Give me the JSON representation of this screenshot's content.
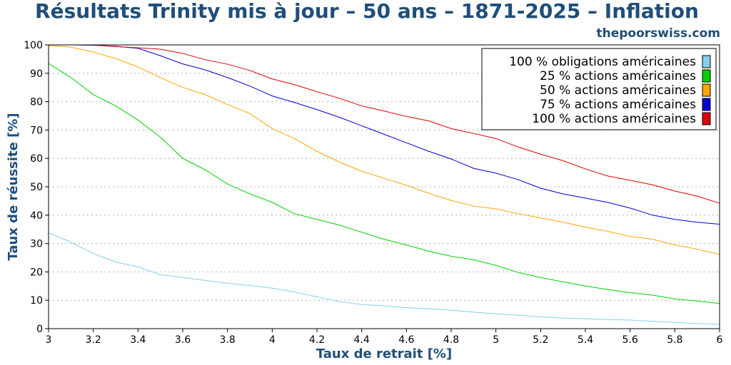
{
  "header": {
    "title": "Résultats Trinity mis à jour – 50 ans – 1871-2025 – Inflation",
    "brand": "thepoorswiss.com"
  },
  "chart_data": {
    "type": "line",
    "title": "Résultats Trinity mis à jour – 50 ans – 1871-2025 – Inflation",
    "xlabel": "Taux de retrait [%]",
    "ylabel": "Taux de réussite [%]",
    "xlim": [
      3,
      6
    ],
    "ylim": [
      0,
      100
    ],
    "xticks": [
      3,
      3.2,
      3.4,
      3.6,
      3.8,
      4,
      4.2,
      4.4,
      4.6,
      4.8,
      5,
      5.2,
      5.4,
      5.6,
      5.8,
      6
    ],
    "xtick_labels": [
      "3",
      "3.2",
      "3.4",
      "3.6",
      "3.8",
      "4",
      "4.2",
      "4.4",
      "4.6",
      "4.8",
      "5",
      "5.2",
      "5.4",
      "5.6",
      "5.8",
      "6"
    ],
    "yticks": [
      0,
      10,
      20,
      30,
      40,
      50,
      60,
      70,
      80,
      90,
      100
    ],
    "ytick_labels": [
      "0",
      "10",
      "20",
      "30",
      "40",
      "50",
      "60",
      "70",
      "80",
      "90",
      "100"
    ],
    "grid": "horizontal-dotted",
    "legend_position": "top-right",
    "x": [
      3.0,
      3.1,
      3.2,
      3.3,
      3.4,
      3.5,
      3.6,
      3.7,
      3.8,
      3.9,
      4.0,
      4.1,
      4.2,
      4.3,
      4.4,
      4.5,
      4.6,
      4.7,
      4.8,
      4.9,
      5.0,
      5.1,
      5.2,
      5.3,
      5.4,
      5.5,
      5.6,
      5.7,
      5.8,
      5.9,
      6.0
    ],
    "series": [
      {
        "name": "100 % obligations américaines",
        "color": "#87ceeb",
        "values": [
          33.8,
          30.5,
          26.5,
          23.5,
          21.8,
          19.0,
          18.0,
          17.0,
          16.0,
          15.2,
          14.3,
          12.9,
          11.2,
          9.5,
          8.5,
          8.0,
          7.4,
          7.0,
          6.5,
          5.8,
          5.2,
          4.7,
          4.2,
          3.7,
          3.5,
          3.2,
          3.0,
          2.6,
          2.2,
          1.8,
          1.5
        ]
      },
      {
        "name": "25 % actions américaines",
        "color": "#00d000",
        "values": [
          93.5,
          88.5,
          82.5,
          78.5,
          73.5,
          67.5,
          60.0,
          56.0,
          51.0,
          47.5,
          44.5,
          40.5,
          38.5,
          36.5,
          34.0,
          31.5,
          29.5,
          27.3,
          25.5,
          24.3,
          22.3,
          19.8,
          18.0,
          16.5,
          15.0,
          13.8,
          12.7,
          11.8,
          10.5,
          9.7,
          8.9
        ]
      },
      {
        "name": "50 % actions américaines",
        "color": "#ffa500",
        "values": [
          99.8,
          99.2,
          97.5,
          95.2,
          92.2,
          88.5,
          85.0,
          82.5,
          79.0,
          75.8,
          70.5,
          67.0,
          62.5,
          58.7,
          55.5,
          53.0,
          50.5,
          47.7,
          45.2,
          43.2,
          42.2,
          40.5,
          39.0,
          37.5,
          35.8,
          34.3,
          32.5,
          31.5,
          29.5,
          28.0,
          26.2
        ]
      },
      {
        "name": "75 % actions américaines",
        "color": "#0000d0",
        "values": [
          100,
          100,
          99.9,
          99.5,
          98.8,
          96.2,
          93.3,
          91.2,
          88.5,
          85.5,
          82.0,
          79.7,
          77.2,
          74.5,
          71.5,
          68.5,
          65.5,
          62.5,
          59.8,
          56.5,
          54.8,
          52.5,
          49.5,
          47.5,
          46.0,
          44.5,
          42.5,
          40.0,
          38.5,
          37.5,
          36.8
        ]
      },
      {
        "name": "100 % actions américaines",
        "color": "#dd0000",
        "values": [
          100,
          100,
          100,
          99.4,
          99.0,
          98.5,
          97.0,
          94.8,
          93.2,
          91.0,
          88.0,
          86.0,
          83.5,
          81.2,
          78.5,
          76.7,
          74.8,
          73.2,
          70.5,
          68.8,
          67.0,
          64.0,
          61.5,
          59.2,
          56.3,
          53.8,
          52.3,
          50.7,
          48.5,
          46.7,
          44.2
        ]
      }
    ]
  }
}
